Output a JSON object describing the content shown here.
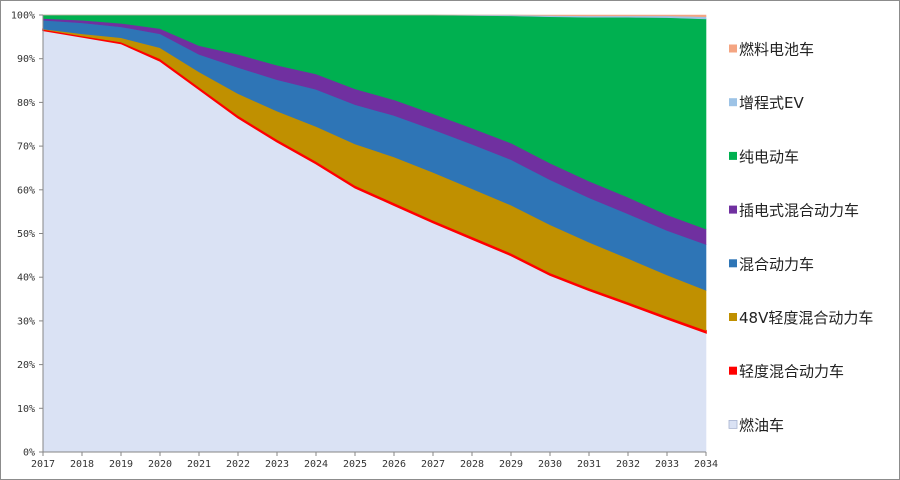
{
  "chart_data": {
    "type": "area",
    "stacked": true,
    "percent": true,
    "title": "",
    "xlabel": "",
    "ylabel": "",
    "ylim": [
      0,
      100
    ],
    "grid": false,
    "legend_position": "right",
    "x": [
      "2017",
      "2018",
      "2019",
      "2020",
      "2021",
      "2022",
      "2023",
      "2024",
      "2025",
      "2026",
      "2027",
      "2028",
      "2029",
      "2030",
      "2031",
      "2032",
      "2033",
      "2034"
    ],
    "y_ticks": [
      "0%",
      "10%",
      "20%",
      "30%",
      "40%",
      "50%",
      "60%",
      "70%",
      "80%",
      "90%",
      "100%"
    ],
    "series": [
      {
        "name": "燃油车",
        "color": "#dae2f4",
        "values": [
          96.5,
          95.0,
          93.5,
          89.5,
          83.0,
          76.5,
          71.0,
          66.0,
          60.5,
          56.5,
          52.5,
          48.8,
          45.0,
          40.5,
          37.0,
          33.8,
          30.5,
          27.3
        ]
      },
      {
        "name": "轻度混合动力车",
        "color": "#ff0000",
        "values": [
          0.2,
          0.2,
          0.3,
          0.5,
          0.5,
          0.5,
          0.5,
          0.5,
          0.5,
          0.5,
          0.5,
          0.5,
          0.5,
          0.5,
          0.5,
          0.5,
          0.5,
          0.5
        ]
      },
      {
        "name": "48V轻度混合动力车",
        "color": "#c09000",
        "values": [
          0.1,
          0.5,
          1.0,
          2.5,
          3.5,
          5.0,
          6.5,
          8.0,
          9.5,
          10.5,
          11.0,
          11.0,
          11.0,
          11.0,
          10.5,
          10.0,
          9.5,
          9.2
        ]
      },
      {
        "name": "混合动力车",
        "color": "#2e75b6",
        "values": [
          2.0,
          2.5,
          2.5,
          3.2,
          4.0,
          6.0,
          7.2,
          8.5,
          9.0,
          9.5,
          9.8,
          10.2,
          10.4,
          10.3,
          10.2,
          10.2,
          10.2,
          10.5
        ]
      },
      {
        "name": "插电式混合动力车",
        "color": "#7030a0",
        "values": [
          0.4,
          0.6,
          0.8,
          1.2,
          2.0,
          3.0,
          3.3,
          3.5,
          3.6,
          3.6,
          3.6,
          3.7,
          3.8,
          3.8,
          3.8,
          3.8,
          3.6,
          3.5
        ]
      },
      {
        "name": "纯电动车",
        "color": "#00b050",
        "values": [
          0.8,
          1.2,
          1.9,
          3.1,
          7.0,
          9.0,
          11.5,
          13.5,
          16.9,
          19.4,
          22.6,
          25.8,
          29.1,
          33.5,
          37.5,
          41.2,
          45.1,
          48.1
        ]
      },
      {
        "name": "增程式EV",
        "color": "#9dc3e6",
        "values": [
          0,
          0,
          0,
          0,
          0,
          0,
          0,
          0,
          0,
          0,
          0,
          0.1,
          0.2,
          0.3,
          0.3,
          0.3,
          0.4,
          0.5
        ]
      },
      {
        "name": "燃料电池车",
        "color": "#f4a582",
        "values": [
          0,
          0,
          0,
          0,
          0,
          0,
          0,
          0,
          0,
          0,
          0,
          0,
          0,
          0.1,
          0.2,
          0.2,
          0.2,
          0.4
        ]
      }
    ]
  }
}
